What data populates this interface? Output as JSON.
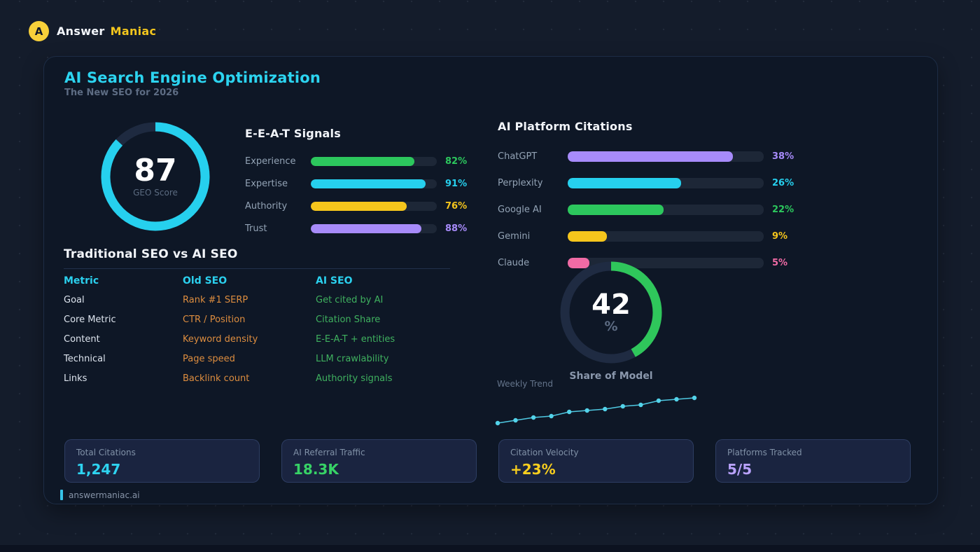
{
  "brand": {
    "logo_letter": "A",
    "name_primary": "Answer",
    "name_accent": "Maniac"
  },
  "page": {
    "title": "AI Search Engine Optimization",
    "subtitle": "The New SEO for 2026",
    "footer_domain": "answermaniac.ai"
  },
  "geo_gauge": {
    "value": 87,
    "max": 100,
    "label": "GEO Score",
    "color": "#26d0ee",
    "track_color": "#1e2a40"
  },
  "eeat": {
    "title": "E-E-A-T Signals",
    "scale_max": 100,
    "bars": [
      {
        "label": "Experience",
        "value": 82,
        "color": "#2cc75d"
      },
      {
        "label": "Expertise",
        "value": 91,
        "color": "#26d0ee"
      },
      {
        "label": "Authority",
        "value": 76,
        "color": "#f6c61c"
      },
      {
        "label": "Trust",
        "value": 88,
        "color": "#a78bfa"
      }
    ]
  },
  "comparison_table": {
    "title": "Traditional SEO vs AI SEO",
    "columns": [
      "Metric",
      "Old SEO",
      "AI SEO"
    ],
    "rows": [
      [
        "Goal",
        "Rank #1 SERP",
        "Get cited by AI"
      ],
      [
        "Core Metric",
        "CTR / Position",
        "Citation Share"
      ],
      [
        "Content",
        "Keyword density",
        "E-E-A-T + entities"
      ],
      [
        "Technical",
        "Page speed",
        "LLM crawlability"
      ],
      [
        "Links",
        "Backlink count",
        "Authority signals"
      ]
    ]
  },
  "citations": {
    "title": "AI Platform Citations",
    "scale_max": 45,
    "bars": [
      {
        "label": "ChatGPT",
        "value": 38,
        "color": "#a78bfa"
      },
      {
        "label": "Perplexity",
        "value": 26,
        "color": "#26d0ee"
      },
      {
        "label": "Google AI",
        "value": 22,
        "color": "#2cc75d"
      },
      {
        "label": "Gemini",
        "value": 9,
        "color": "#f6c61c"
      },
      {
        "label": "Claude",
        "value": 5,
        "color": "#f06ba5"
      }
    ]
  },
  "share_of_model": {
    "value": 42,
    "max": 100,
    "unit": "%",
    "label": "Share of Model",
    "color": "#2fc65b",
    "track_color": "#1f2b42"
  },
  "weekly_trend": {
    "label": "Weekly Trend",
    "points": [
      0,
      4,
      8,
      10,
      16,
      18,
      20,
      24,
      26,
      32,
      34,
      36
    ],
    "color": "#4fc9e2"
  },
  "stats": [
    {
      "label": "Total Citations",
      "value": "1,247",
      "color": "#2ed3f0"
    },
    {
      "label": "AI Referral Traffic",
      "value": "18.3K",
      "color": "#37d266"
    },
    {
      "label": "Citation Velocity",
      "value": "+23%",
      "color": "#f8ce1e"
    },
    {
      "label": "Platforms Tracked",
      "value": "5/5",
      "color": "#b9a2fc"
    }
  ],
  "chart_data": [
    {
      "type": "gauge",
      "title": "GEO Score",
      "value": 87,
      "range": [
        0,
        100
      ]
    },
    {
      "type": "bar",
      "title": "E-E-A-T Signals",
      "categories": [
        "Experience",
        "Expertise",
        "Authority",
        "Trust"
      ],
      "values": [
        82,
        91,
        76,
        88
      ],
      "unit": "%"
    },
    {
      "type": "bar",
      "title": "AI Platform Citations",
      "categories": [
        "ChatGPT",
        "Perplexity",
        "Google AI",
        "Gemini",
        "Claude"
      ],
      "values": [
        38,
        26,
        22,
        9,
        5
      ],
      "unit": "%"
    },
    {
      "type": "gauge",
      "title": "Share of Model",
      "value": 42,
      "range": [
        0,
        100
      ],
      "unit": "%"
    },
    {
      "type": "line",
      "title": "Weekly Trend",
      "x": [
        1,
        2,
        3,
        4,
        5,
        6,
        7,
        8,
        9,
        10,
        11,
        12
      ],
      "values": [
        0,
        4,
        8,
        10,
        16,
        18,
        20,
        24,
        26,
        32,
        34,
        36
      ],
      "note": "unlabeled rising sparkline, relative units"
    }
  ]
}
